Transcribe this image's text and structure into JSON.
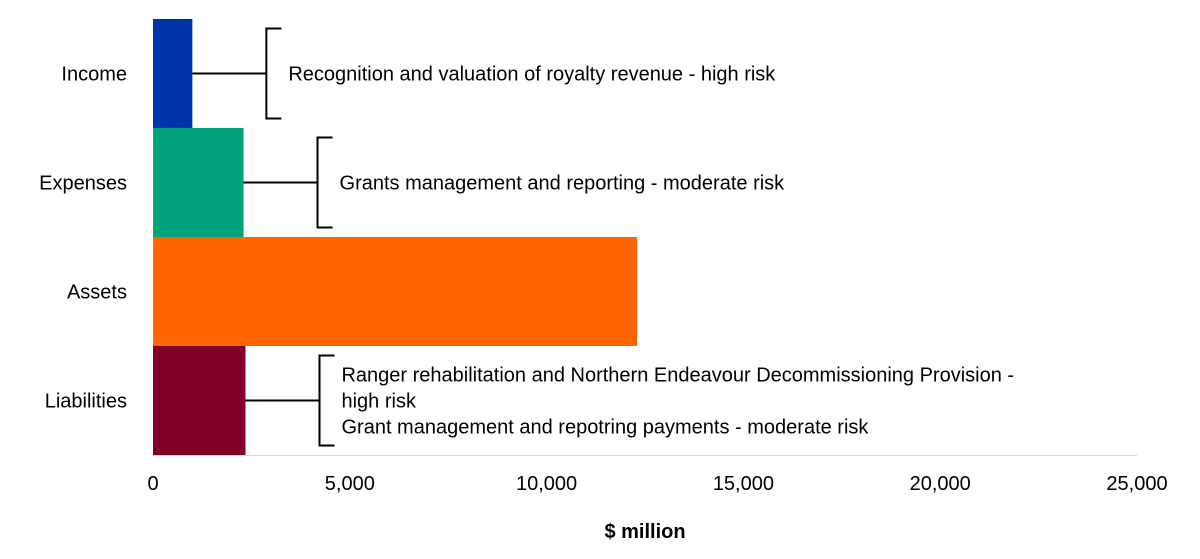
{
  "chart_data": {
    "type": "bar",
    "orientation": "horizontal",
    "categories": [
      "Income",
      "Expenses",
      "Assets",
      "Liabilities"
    ],
    "values": [
      1000,
      2300,
      12300,
      2350
    ],
    "colors": [
      "#0033aa",
      "#00a27a",
      "#ff6600",
      "#800026"
    ],
    "xlabel": "$ million",
    "xlim": [
      0,
      25000
    ],
    "x_ticks": [
      "0",
      "5,000",
      "10,000",
      "15,000",
      "20,000",
      "25,000"
    ],
    "x_tick_values": [
      0,
      5000,
      10000,
      15000,
      20000,
      25000
    ],
    "grid": false,
    "legend": "none",
    "annotations": [
      {
        "category": "Income",
        "lines": [
          "Recognition and valuation of royalty revenue - high risk"
        ]
      },
      {
        "category": "Expenses",
        "lines": [
          "Grants management and reporting - moderate risk"
        ]
      },
      {
        "category": "Liabilities",
        "lines": [
          "Ranger rehabilitation and Northern Endeavour Decommissioning Provision -",
          "high risk",
          "Grant management and repotring payments - moderate risk"
        ]
      }
    ]
  }
}
